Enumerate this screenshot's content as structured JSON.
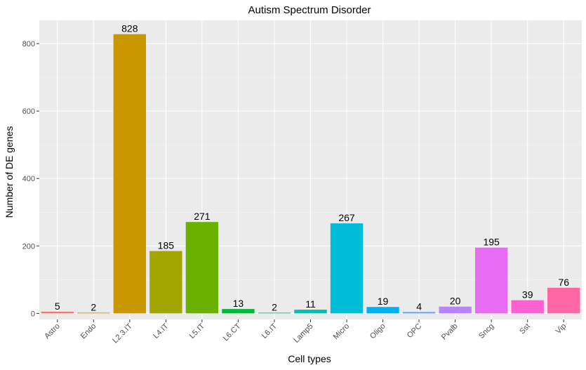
{
  "chart_data": {
    "type": "bar",
    "title": "Autism Spectrum Disorder",
    "xlabel": "Cell types",
    "ylabel": "Number of DE genes",
    "categories": [
      "Astro",
      "Endo",
      "L2.3.IT",
      "L4.IT",
      "L5.IT",
      "L6.CT",
      "L6.IT",
      "Lamp5",
      "Micro",
      "Oligo",
      "OPC",
      "Pvalb",
      "Sncg",
      "Sst",
      "Vip"
    ],
    "values": [
      5,
      2,
      828,
      185,
      271,
      13,
      2,
      11,
      267,
      19,
      4,
      20,
      195,
      39,
      76
    ],
    "colors": [
      "#F8766D",
      "#E58700",
      "#C99800",
      "#A3A500",
      "#6BB100",
      "#00BA38",
      "#00BF7D",
      "#00C0AF",
      "#00BCD8",
      "#00B0F6",
      "#619CFF",
      "#B983FF",
      "#E76BF3",
      "#FD61D1",
      "#FF67A4"
    ],
    "ylim": [
      -18,
      869
    ],
    "yticks": [
      0,
      200,
      400,
      600,
      800
    ],
    "grid": true,
    "legend": "none",
    "panel_background": "#EBEBEB"
  }
}
